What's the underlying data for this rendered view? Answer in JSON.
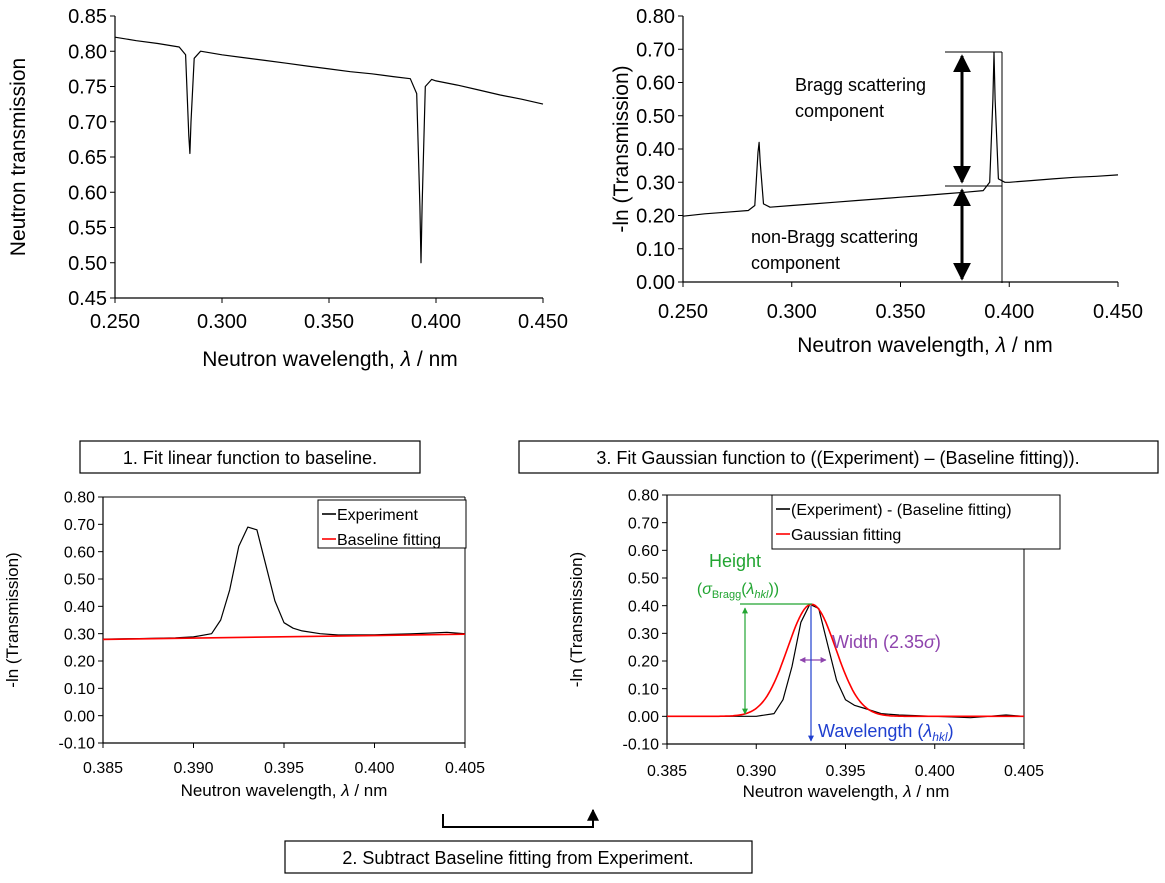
{
  "chart_data": [
    {
      "type": "line",
      "ylabel": "Neutron transmission",
      "xlabel_prefix": "Neutron wavelength, ",
      "xlabel_symbol": "λ",
      "xlabel_suffix": " / nm",
      "xlim": [
        0.25,
        0.45
      ],
      "ylim": [
        0.45,
        0.85
      ],
      "xticks": [
        "0.250",
        "0.300",
        "0.350",
        "0.400",
        "0.450"
      ],
      "yticks": [
        "0.45",
        "0.50",
        "0.55",
        "0.60",
        "0.65",
        "0.70",
        "0.75",
        "0.80",
        "0.85"
      ],
      "grid": false,
      "series": [
        {
          "color": "#000000",
          "x": [
            0.25,
            0.26,
            0.27,
            0.28,
            0.283,
            0.2845,
            0.285,
            0.2855,
            0.287,
            0.29,
            0.3,
            0.31,
            0.32,
            0.33,
            0.34,
            0.35,
            0.36,
            0.37,
            0.38,
            0.388,
            0.391,
            0.3925,
            0.393,
            0.3935,
            0.395,
            0.398,
            0.4,
            0.41,
            0.42,
            0.43,
            0.44,
            0.45
          ],
          "y": [
            0.82,
            0.815,
            0.811,
            0.806,
            0.795,
            0.68,
            0.655,
            0.7,
            0.79,
            0.8,
            0.795,
            0.791,
            0.787,
            0.783,
            0.779,
            0.775,
            0.771,
            0.768,
            0.764,
            0.761,
            0.74,
            0.58,
            0.5,
            0.58,
            0.75,
            0.76,
            0.758,
            0.752,
            0.745,
            0.738,
            0.732,
            0.725
          ]
        }
      ]
    },
    {
      "type": "line",
      "ylabel": "-ln (Transmission)",
      "xlabel_prefix": "Neutron wavelength, ",
      "xlabel_symbol": "λ",
      "xlabel_suffix": " / nm",
      "xlim": [
        0.25,
        0.45
      ],
      "ylim": [
        0.0,
        0.8
      ],
      "xticks": [
        "0.250",
        "0.300",
        "0.350",
        "0.400",
        "0.450"
      ],
      "yticks": [
        "0.00",
        "0.10",
        "0.20",
        "0.30",
        "0.40",
        "0.50",
        "0.60",
        "0.70",
        "0.80"
      ],
      "grid": false,
      "series": [
        {
          "color": "#000000",
          "x": [
            0.25,
            0.26,
            0.27,
            0.28,
            0.283,
            0.2845,
            0.285,
            0.2855,
            0.287,
            0.29,
            0.3,
            0.31,
            0.32,
            0.33,
            0.34,
            0.35,
            0.36,
            0.37,
            0.38,
            0.388,
            0.391,
            0.3925,
            0.393,
            0.3935,
            0.395,
            0.398,
            0.4,
            0.41,
            0.42,
            0.43,
            0.44,
            0.45
          ],
          "y": [
            0.198,
            0.205,
            0.21,
            0.215,
            0.23,
            0.39,
            0.42,
            0.36,
            0.235,
            0.225,
            0.23,
            0.235,
            0.24,
            0.245,
            0.25,
            0.255,
            0.26,
            0.265,
            0.27,
            0.275,
            0.3,
            0.55,
            0.69,
            0.55,
            0.31,
            0.3,
            0.3,
            0.305,
            0.31,
            0.315,
            0.318,
            0.322
          ]
        }
      ],
      "annotations": [
        "Bragg scattering",
        "component",
        "non-Bragg scattering",
        "component"
      ]
    },
    {
      "type": "line",
      "ylabel": "-ln (Transmission)",
      "xlabel_prefix": "Neutron wavelength, ",
      "xlabel_symbol": "λ",
      "xlabel_suffix": " / nm",
      "xlim": [
        0.385,
        0.405
      ],
      "ylim": [
        -0.1,
        0.8
      ],
      "xticks": [
        "0.385",
        "0.390",
        "0.395",
        "0.400",
        "0.405"
      ],
      "yticks": [
        "-0.10",
        "0.00",
        "0.10",
        "0.20",
        "0.30",
        "0.40",
        "0.50",
        "0.60",
        "0.70",
        "0.80"
      ],
      "grid": false,
      "legend_position": "top-right",
      "series": [
        {
          "name": "Experiment",
          "color": "#000000",
          "x": [
            0.385,
            0.387,
            0.389,
            0.39,
            0.391,
            0.3915,
            0.392,
            0.3925,
            0.393,
            0.3935,
            0.394,
            0.3945,
            0.395,
            0.3955,
            0.396,
            0.397,
            0.398,
            0.4,
            0.402,
            0.404,
            0.405
          ],
          "y": [
            0.28,
            0.282,
            0.285,
            0.288,
            0.3,
            0.35,
            0.46,
            0.62,
            0.69,
            0.68,
            0.55,
            0.42,
            0.34,
            0.32,
            0.31,
            0.3,
            0.295,
            0.296,
            0.299,
            0.305,
            0.3
          ]
        },
        {
          "name": "Baseline fitting",
          "color": "#ff0000",
          "x": [
            0.385,
            0.405
          ],
          "y": [
            0.279,
            0.298
          ]
        }
      ]
    },
    {
      "type": "line",
      "ylabel": "-ln (Transmission)",
      "xlabel_prefix": "Neutron wavelength, ",
      "xlabel_symbol": "λ",
      "xlabel_suffix": " / nm",
      "xlim": [
        0.385,
        0.405
      ],
      "ylim": [
        -0.1,
        0.8
      ],
      "xticks": [
        "0.385",
        "0.390",
        "0.395",
        "0.400",
        "0.405"
      ],
      "yticks": [
        "-0.10",
        "0.00",
        "0.10",
        "0.20",
        "0.30",
        "0.40",
        "0.50",
        "0.60",
        "0.70",
        "0.80"
      ],
      "grid": false,
      "legend_position": "top-right",
      "series": [
        {
          "name": "(Experiment) - (Baseline fitting)",
          "color": "#000000",
          "x": [
            0.385,
            0.387,
            0.389,
            0.39,
            0.391,
            0.3915,
            0.392,
            0.3925,
            0.393,
            0.3935,
            0.394,
            0.3945,
            0.395,
            0.3955,
            0.396,
            0.397,
            0.398,
            0.4,
            0.402,
            0.404,
            0.405
          ],
          "y": [
            0.0,
            0.0,
            0.0,
            0.0,
            0.01,
            0.06,
            0.18,
            0.34,
            0.405,
            0.39,
            0.26,
            0.13,
            0.06,
            0.04,
            0.03,
            0.01,
            0.005,
            0.0,
            -0.005,
            0.005,
            0.0
          ]
        },
        {
          "name": "Gaussian fitting",
          "color": "#ff0000",
          "gaussian": {
            "amplitude": 0.405,
            "center": 0.3931,
            "sigma": 0.00135
          },
          "x": [
            0.385,
            0.405
          ],
          "y": [
            0.0,
            0.0
          ]
        }
      ],
      "annotations": {
        "height_label": "Height",
        "height_formula": "(σBragg(λhkl))",
        "width_label": "Width (2.35σ)",
        "wavelength_label": "Wavelength (λhkl)"
      }
    }
  ],
  "steps": {
    "step1": "1. Fit linear function to baseline.",
    "step2": "2. Subtract Baseline fitting from Experiment.",
    "step3": "3. Fit Gaussian function to ((Experiment) – (Baseline fitting))."
  },
  "colors": {
    "experiment": "#000000",
    "fit": "#ff0000",
    "height": "#22a532",
    "width": "#8e44ad",
    "wavelength": "#1f3fcf"
  }
}
